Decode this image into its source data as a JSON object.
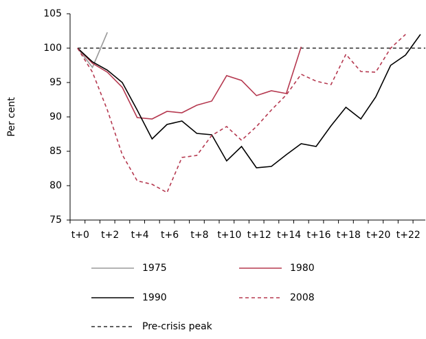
{
  "chart_data": {
    "type": "line",
    "y_label": "Per cent",
    "categories": [
      "t+0",
      null,
      "t+2",
      null,
      "t+4",
      null,
      "t+6",
      null,
      "t+8",
      null,
      "t+10",
      null,
      "t+12",
      null,
      "t+14",
      null,
      "t+16",
      null,
      "t+18",
      null,
      "t+20",
      null,
      "t+22",
      null
    ],
    "series": [
      {
        "name": "1975",
        "color": "#9a9a9a",
        "dash": false,
        "values": [
          100,
          97.2,
          102.3,
          null,
          null,
          null,
          null,
          null,
          null,
          null,
          null,
          null,
          null,
          null,
          null,
          null,
          null,
          null,
          null,
          null,
          null,
          null,
          null,
          null
        ]
      },
      {
        "name": "1980",
        "color": "#b5384f",
        "dash": false,
        "values": [
          100,
          97.8,
          96.5,
          94.3,
          89.9,
          89.7,
          90.8,
          90.6,
          91.7,
          92.3,
          96.0,
          95.3,
          93.1,
          93.8,
          93.4,
          100.2,
          null,
          null,
          null,
          null,
          null,
          null,
          null,
          null
        ]
      },
      {
        "name": "1990",
        "color": "#000000",
        "dash": false,
        "values": [
          100,
          98.0,
          96.8,
          95.0,
          91.0,
          86.8,
          88.9,
          89.4,
          87.6,
          87.4,
          83.6,
          85.7,
          82.6,
          82.8,
          84.5,
          86.1,
          85.7,
          88.7,
          91.4,
          89.7,
          92.9,
          97.5,
          99.0,
          102.0
        ]
      },
      {
        "name": "2008",
        "color": "#b5384f",
        "dash": true,
        "values": [
          100,
          96.5,
          91.0,
          84.5,
          80.7,
          80.2,
          79.0,
          84.1,
          84.4,
          87.3,
          88.6,
          86.6,
          88.6,
          91.0,
          93.2,
          96.2,
          95.2,
          94.7,
          99.1,
          96.6,
          96.5,
          100.0,
          102.0,
          null
        ]
      }
    ],
    "reference": {
      "name": "Pre-crisis peak",
      "value": 100,
      "color": "#000000"
    },
    "ylim": [
      75,
      105
    ],
    "yticks": [
      75,
      80,
      85,
      90,
      95,
      100,
      105
    ]
  }
}
